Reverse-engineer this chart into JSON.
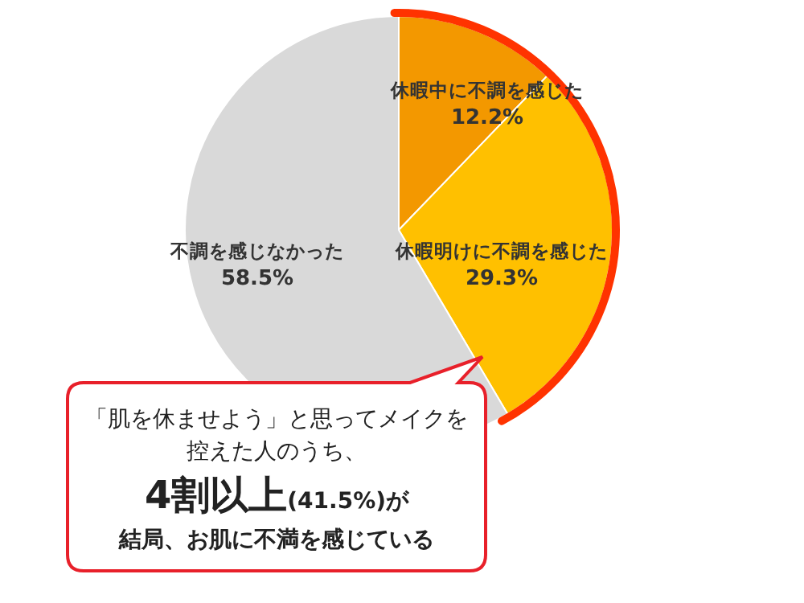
{
  "chart_data": {
    "type": "pie",
    "categories": [
      "休暇中に不調を感じた",
      "休暇明けに不調を感じた",
      "不調を感じなかった"
    ],
    "values": [
      12.2,
      29.3,
      58.5
    ],
    "colors": [
      "#f39800",
      "#ffc000",
      "#d9d9d9"
    ],
    "value_labels": [
      "12.2%",
      "29.3%",
      "58.5%"
    ],
    "annotations": [
      "「肌を休ませよう」と思ってメイクを",
      "控えた人のうち、",
      "4割以上",
      "(41.5%)が",
      "結局、お肌に不満を感じている"
    ],
    "data_labels": false
  }
}
